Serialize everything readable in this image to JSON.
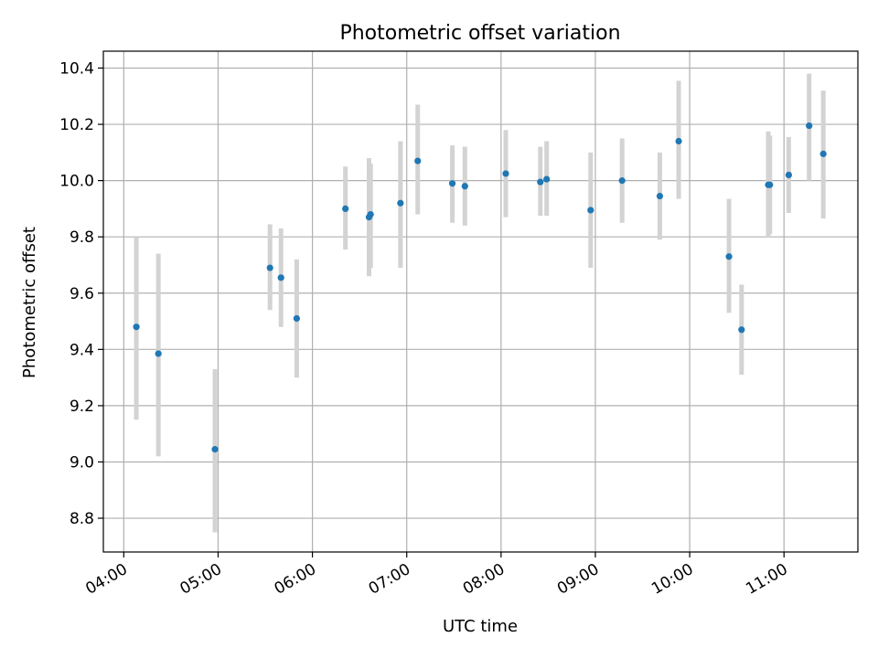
{
  "chart_data": {
    "type": "scatter",
    "title": "Photometric offset variation",
    "xlabel": "UTC time",
    "ylabel": "Photometric offset",
    "x_ticks": [
      "04:00",
      "05:00",
      "06:00",
      "07:00",
      "08:00",
      "09:00",
      "10:00",
      "11:00"
    ],
    "y_ticks": [
      "8.8",
      "9.0",
      "9.2",
      "9.4",
      "9.6",
      "9.8",
      "10.0",
      "10.2",
      "10.4"
    ],
    "xlim": [
      "03:47",
      "11:47"
    ],
    "ylim": [
      8.68,
      10.46
    ],
    "grid": true,
    "legend": "none",
    "colors": {
      "marker": "#1f77b4",
      "errorbar": "#d3d3d3",
      "grid": "#b0b0b0"
    },
    "points": [
      {
        "x": "04:08",
        "y": 9.48,
        "lo": 9.15,
        "hi": 9.8
      },
      {
        "x": "04:22",
        "y": 9.385,
        "lo": 9.02,
        "hi": 9.74
      },
      {
        "x": "04:58",
        "y": 9.045,
        "lo": 8.75,
        "hi": 9.33
      },
      {
        "x": "05:33",
        "y": 9.69,
        "lo": 9.54,
        "hi": 9.845
      },
      {
        "x": "05:40",
        "y": 9.655,
        "lo": 9.48,
        "hi": 9.83
      },
      {
        "x": "05:50",
        "y": 9.51,
        "lo": 9.3,
        "hi": 9.72
      },
      {
        "x": "06:21",
        "y": 9.9,
        "lo": 9.755,
        "hi": 10.05
      },
      {
        "x": "06:36",
        "y": 9.87,
        "lo": 9.66,
        "hi": 10.08
      },
      {
        "x": "06:37",
        "y": 9.88,
        "lo": 9.69,
        "hi": 10.06
      },
      {
        "x": "06:56",
        "y": 9.92,
        "lo": 9.69,
        "hi": 10.14
      },
      {
        "x": "07:07",
        "y": 10.07,
        "lo": 9.88,
        "hi": 10.27
      },
      {
        "x": "07:29",
        "y": 9.99,
        "lo": 9.85,
        "hi": 10.125
      },
      {
        "x": "07:37",
        "y": 9.98,
        "lo": 9.84,
        "hi": 10.12
      },
      {
        "x": "08:03",
        "y": 10.025,
        "lo": 9.87,
        "hi": 10.18
      },
      {
        "x": "08:25",
        "y": 9.995,
        "lo": 9.875,
        "hi": 10.12
      },
      {
        "x": "08:29",
        "y": 10.005,
        "lo": 9.875,
        "hi": 10.14
      },
      {
        "x": "08:57",
        "y": 9.895,
        "lo": 9.69,
        "hi": 10.1
      },
      {
        "x": "09:17",
        "y": 10.0,
        "lo": 9.85,
        "hi": 10.15
      },
      {
        "x": "09:41",
        "y": 9.945,
        "lo": 9.79,
        "hi": 10.1
      },
      {
        "x": "09:53",
        "y": 10.14,
        "lo": 9.935,
        "hi": 10.355
      },
      {
        "x": "10:25",
        "y": 9.73,
        "lo": 9.53,
        "hi": 9.935
      },
      {
        "x": "10:33",
        "y": 9.47,
        "lo": 9.31,
        "hi": 9.63
      },
      {
        "x": "10:50",
        "y": 9.985,
        "lo": 9.8,
        "hi": 10.175
      },
      {
        "x": "10:51",
        "y": 9.985,
        "lo": 9.81,
        "hi": 10.16
      },
      {
        "x": "11:03",
        "y": 10.02,
        "lo": 9.885,
        "hi": 10.155
      },
      {
        "x": "11:16",
        "y": 10.195,
        "lo": 10.0,
        "hi": 10.38
      },
      {
        "x": "11:25",
        "y": 10.095,
        "lo": 9.865,
        "hi": 10.32
      }
    ]
  }
}
